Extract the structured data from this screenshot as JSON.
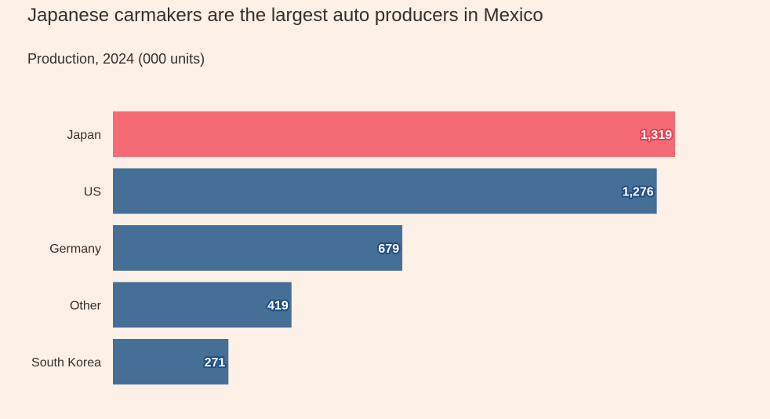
{
  "header": {
    "title": "Japanese carmakers are the largest auto producers in Mexico",
    "subtitle": "Production, 2024 (000 units)"
  },
  "colors": {
    "background": "#fdf0e6",
    "highlight": "#f46b75",
    "default": "#466f98",
    "highlight_halo": "#e9404f",
    "default_halo": "#1f4e82"
  },
  "chart_data": {
    "type": "bar",
    "orientation": "horizontal",
    "categories": [
      "Japan",
      "US",
      "Germany",
      "Other",
      "South Korea"
    ],
    "values": [
      1319,
      1276,
      679,
      419,
      271
    ],
    "value_labels": [
      "1,319",
      "1,276",
      "679",
      "419",
      "271"
    ],
    "highlight": "Japan",
    "title": "Japanese carmakers are the largest auto producers in Mexico",
    "subtitle": "Production, 2024 (000 units)",
    "xlim": [
      0,
      1319
    ],
    "grid": false,
    "legend": "none"
  }
}
